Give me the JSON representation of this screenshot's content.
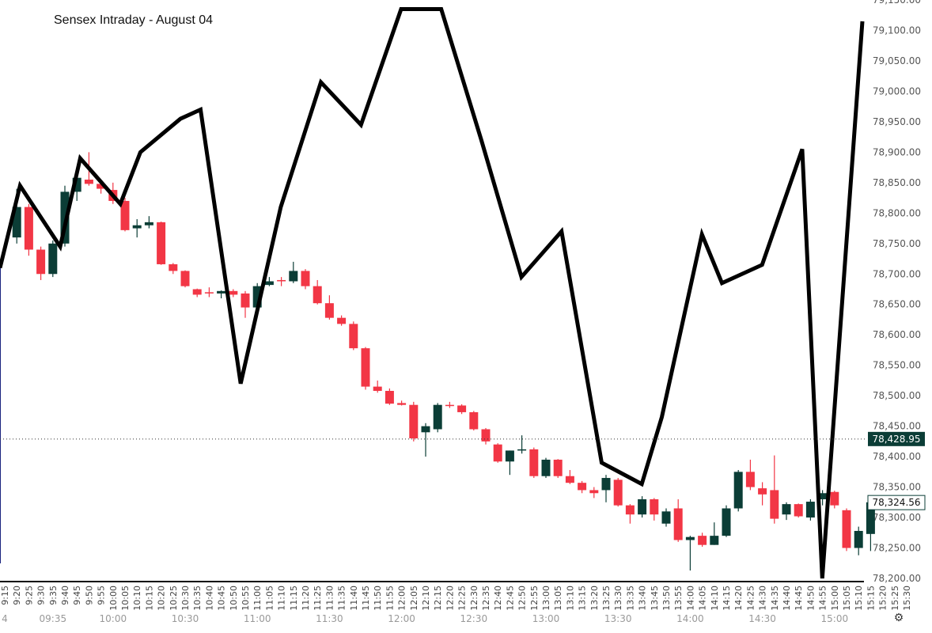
{
  "title": "Sensex Intraday - August 04",
  "chart_data": {
    "type": "candlestick",
    "title": "Sensex Intraday - August 04",
    "ylim": [
      78200,
      79150
    ],
    "y_ticks": [
      "78,200.00",
      "78,250.00",
      "78,300.00",
      "78,350.00",
      "78,400.00",
      "78,450.00",
      "78,500.00",
      "78,550.00",
      "78,600.00",
      "78,650.00",
      "78,700.00",
      "78,750.00",
      "78,800.00",
      "78,850.00",
      "78,900.00",
      "78,950.00",
      "79,000.00",
      "79,050.00",
      "79,100.00",
      "79,150.00"
    ],
    "time_labels": [
      "9:15",
      "9:20",
      "9:25",
      "9:30",
      "9:35",
      "9:40",
      "9:45",
      "9:50",
      "9:55",
      "10:00",
      "10:05",
      "10:10",
      "10:15",
      "10:20",
      "10:25",
      "10:30",
      "10:35",
      "10:40",
      "10:45",
      "10:50",
      "10:55",
      "11:00",
      "11:05",
      "11:10",
      "11:15",
      "11:20",
      "11:25",
      "11:30",
      "11:35",
      "11:40",
      "11:45",
      "11:50",
      "11:55",
      "12:00",
      "12:05",
      "12:10",
      "12:15",
      "12:20",
      "12:25",
      "12:30",
      "12:35",
      "12:40",
      "12:45",
      "12:50",
      "12:55",
      "13:00",
      "13:05",
      "13:10",
      "13:15",
      "13:20",
      "13:25",
      "13:30",
      "13:35",
      "13:40",
      "13:45",
      "13:50",
      "13:55",
      "14:00",
      "14:05",
      "14:10",
      "14:15",
      "14:20",
      "14:25",
      "14:30",
      "14:35",
      "14:40",
      "14:45",
      "14:50",
      "14:55",
      "15:00",
      "15:05",
      "15:10",
      "15:15",
      "15:20",
      "15:25",
      "15:30"
    ],
    "major_labels": [
      {
        "label": "4",
        "time": "9:15"
      },
      {
        "label": "09:35",
        "time": "9:35"
      },
      {
        "label": "10:00",
        "time": "10:00"
      },
      {
        "label": "10:30",
        "time": "10:30"
      },
      {
        "label": "11:00",
        "time": "11:00"
      },
      {
        "label": "11:30",
        "time": "11:30"
      },
      {
        "label": "12:00",
        "time": "12:00"
      },
      {
        "label": "12:30",
        "time": "12:30"
      },
      {
        "label": "13:00",
        "time": "13:00"
      },
      {
        "label": "13:30",
        "time": "13:30"
      },
      {
        "label": "14:00",
        "time": "14:00"
      },
      {
        "label": "14:30",
        "time": "14:30"
      },
      {
        "label": "15:00",
        "time": "15:00"
      }
    ],
    "candles": [
      {
        "time": "9:20",
        "o": 78760,
        "h": 78840,
        "l": 78750,
        "c": 78810
      },
      {
        "time": "9:25",
        "o": 78810,
        "h": 78815,
        "l": 78730,
        "c": 78740
      },
      {
        "time": "9:30",
        "o": 78740,
        "h": 78745,
        "l": 78690,
        "c": 78700
      },
      {
        "time": "9:35",
        "o": 78700,
        "h": 78755,
        "l": 78695,
        "c": 78750
      },
      {
        "time": "9:40",
        "o": 78750,
        "h": 78845,
        "l": 78745,
        "c": 78835
      },
      {
        "time": "9:45",
        "o": 78835,
        "h": 78862,
        "l": 78820,
        "c": 78858
      },
      {
        "time": "9:50",
        "o": 78855,
        "h": 78900,
        "l": 78845,
        "c": 78848
      },
      {
        "time": "9:55",
        "o": 78848,
        "h": 78855,
        "l": 78832,
        "c": 78840
      },
      {
        "time": "10:00",
        "o": 78838,
        "h": 78850,
        "l": 78815,
        "c": 78820
      },
      {
        "time": "10:05",
        "o": 78820,
        "h": 78825,
        "l": 78770,
        "c": 78772
      },
      {
        "time": "10:10",
        "o": 78775,
        "h": 78790,
        "l": 78760,
        "c": 78780
      },
      {
        "time": "10:15",
        "o": 78780,
        "h": 78795,
        "l": 78775,
        "c": 78785
      },
      {
        "time": "10:20",
        "o": 78785,
        "h": 78786,
        "l": 78715,
        "c": 78716
      },
      {
        "time": "10:25",
        "o": 78716,
        "h": 78718,
        "l": 78700,
        "c": 78705
      },
      {
        "time": "10:30",
        "o": 78705,
        "h": 78706,
        "l": 78678,
        "c": 78680
      },
      {
        "time": "10:35",
        "o": 78675,
        "h": 78676,
        "l": 78662,
        "c": 78666
      },
      {
        "time": "10:40",
        "o": 78670,
        "h": 78678,
        "l": 78662,
        "c": 78669
      },
      {
        "time": "10:45",
        "o": 78668,
        "h": 78673,
        "l": 78660,
        "c": 78672
      },
      {
        "time": "10:50",
        "o": 78672,
        "h": 78675,
        "l": 78662,
        "c": 78666
      },
      {
        "time": "10:55",
        "o": 78668,
        "h": 78672,
        "l": 78628,
        "c": 78645
      },
      {
        "time": "11:00",
        "o": 78645,
        "h": 78685,
        "l": 78640,
        "c": 78680
      },
      {
        "time": "11:05",
        "o": 78682,
        "h": 78695,
        "l": 78680,
        "c": 78688
      },
      {
        "time": "11:10",
        "o": 78690,
        "h": 78695,
        "l": 78680,
        "c": 78688
      },
      {
        "time": "11:15",
        "o": 78688,
        "h": 78720,
        "l": 78685,
        "c": 78705
      },
      {
        "time": "11:20",
        "o": 78705,
        "h": 78708,
        "l": 78675,
        "c": 78680
      },
      {
        "time": "11:25",
        "o": 78680,
        "h": 78690,
        "l": 78650,
        "c": 78652
      },
      {
        "time": "11:30",
        "o": 78652,
        "h": 78665,
        "l": 78625,
        "c": 78628
      },
      {
        "time": "11:35",
        "o": 78628,
        "h": 78632,
        "l": 78615,
        "c": 78618
      },
      {
        "time": "11:40",
        "o": 78618,
        "h": 78622,
        "l": 78575,
        "c": 78578
      },
      {
        "time": "11:45",
        "o": 78578,
        "h": 78580,
        "l": 78510,
        "c": 78515
      },
      {
        "time": "11:50",
        "o": 78515,
        "h": 78525,
        "l": 78505,
        "c": 78508
      },
      {
        "time": "11:55",
        "o": 78508,
        "h": 78512,
        "l": 78485,
        "c": 78487
      },
      {
        "time": "12:00",
        "o": 78488,
        "h": 78492,
        "l": 78484,
        "c": 78485
      },
      {
        "time": "12:05",
        "o": 78485,
        "h": 78490,
        "l": 78425,
        "c": 78430
      },
      {
        "time": "12:10",
        "o": 78440,
        "h": 78455,
        "l": 78400,
        "c": 78450
      },
      {
        "time": "12:15",
        "o": 78445,
        "h": 78488,
        "l": 78440,
        "c": 78485
      },
      {
        "time": "12:20",
        "o": 78485,
        "h": 78490,
        "l": 78480,
        "c": 78484
      },
      {
        "time": "12:25",
        "o": 78484,
        "h": 78486,
        "l": 78470,
        "c": 78473
      },
      {
        "time": "12:30",
        "o": 78473,
        "h": 78475,
        "l": 78443,
        "c": 78445
      },
      {
        "time": "12:35",
        "o": 78445,
        "h": 78447,
        "l": 78420,
        "c": 78425
      },
      {
        "time": "12:40",
        "o": 78420,
        "h": 78422,
        "l": 78390,
        "c": 78392
      },
      {
        "time": "12:45",
        "o": 78392,
        "h": 78410,
        "l": 78370,
        "c": 78410
      },
      {
        "time": "12:50",
        "o": 78410,
        "h": 78435,
        "l": 78405,
        "c": 78412
      },
      {
        "time": "12:55",
        "o": 78412,
        "h": 78415,
        "l": 78365,
        "c": 78368
      },
      {
        "time": "13:00",
        "o": 78368,
        "h": 78398,
        "l": 78365,
        "c": 78395
      },
      {
        "time": "13:05",
        "o": 78395,
        "h": 78396,
        "l": 78365,
        "c": 78368
      },
      {
        "time": "13:10",
        "o": 78368,
        "h": 78378,
        "l": 78355,
        "c": 78357
      },
      {
        "time": "13:15",
        "o": 78357,
        "h": 78360,
        "l": 78340,
        "c": 78345
      },
      {
        "time": "13:20",
        "o": 78345,
        "h": 78350,
        "l": 78332,
        "c": 78340
      },
      {
        "time": "13:25",
        "o": 78345,
        "h": 78370,
        "l": 78325,
        "c": 78365
      },
      {
        "time": "13:30",
        "o": 78362,
        "h": 78365,
        "l": 78318,
        "c": 78320
      },
      {
        "time": "13:35",
        "o": 78320,
        "h": 78322,
        "l": 78290,
        "c": 78305
      },
      {
        "time": "13:40",
        "o": 78305,
        "h": 78335,
        "l": 78300,
        "c": 78330
      },
      {
        "time": "13:45",
        "o": 78330,
        "h": 78332,
        "l": 78295,
        "c": 78305
      },
      {
        "time": "13:50",
        "o": 78290,
        "h": 78315,
        "l": 78285,
        "c": 78310
      },
      {
        "time": "13:55",
        "o": 78315,
        "h": 78330,
        "l": 78260,
        "c": 78263
      },
      {
        "time": "14:00",
        "o": 78263,
        "h": 78270,
        "l": 78213,
        "c": 78268
      },
      {
        "time": "14:05",
        "o": 78270,
        "h": 78275,
        "l": 78252,
        "c": 78255
      },
      {
        "time": "14:10",
        "o": 78255,
        "h": 78292,
        "l": 78255,
        "c": 78270
      },
      {
        "time": "14:15",
        "o": 78270,
        "h": 78320,
        "l": 78268,
        "c": 78315
      },
      {
        "time": "14:20",
        "o": 78315,
        "h": 78378,
        "l": 78310,
        "c": 78375
      },
      {
        "time": "14:25",
        "o": 78375,
        "h": 78395,
        "l": 78345,
        "c": 78350
      },
      {
        "time": "14:30",
        "o": 78348,
        "h": 78358,
        "l": 78320,
        "c": 78338
      },
      {
        "time": "14:35",
        "o": 78345,
        "h": 78402,
        "l": 78290,
        "c": 78298
      },
      {
        "time": "14:40",
        "o": 78305,
        "h": 78325,
        "l": 78296,
        "c": 78322
      },
      {
        "time": "14:45",
        "o": 78322,
        "h": 78323,
        "l": 78300,
        "c": 78302
      },
      {
        "time": "14:50",
        "o": 78300,
        "h": 78330,
        "l": 78295,
        "c": 78326
      },
      {
        "time": "14:55",
        "o": 78330,
        "h": 78345,
        "l": 78320,
        "c": 78340
      },
      {
        "time": "15:00",
        "o": 78342,
        "h": 78344,
        "l": 78315,
        "c": 78320
      },
      {
        "time": "15:05",
        "o": 78312,
        "h": 78315,
        "l": 78245,
        "c": 78250
      },
      {
        "time": "15:10",
        "o": 78250,
        "h": 78285,
        "l": 78238,
        "c": 78278
      },
      {
        "time": "15:15",
        "o": 78273,
        "h": 78330,
        "l": 78245,
        "c": 78325
      }
    ],
    "series": [
      {
        "x": [
          "9:15",
          "9:20",
          "9:30",
          "9:35",
          "9:45",
          "9:50",
          "10:00",
          "10:05",
          "10:15",
          "10:25",
          "10:35",
          "10:45",
          "10:55",
          "11:05",
          "11:15",
          "11:25",
          "11:35",
          "11:45",
          "11:55",
          "12:00",
          "12:10",
          "12:15",
          "12:25",
          "12:35",
          "12:40",
          "12:50",
          "12:55",
          "13:05",
          "13:10",
          "13:20",
          "13:25",
          "13:35",
          "13:40",
          "13:50",
          "14:00",
          "14:10",
          "14:20",
          "14:25",
          "14:35",
          "14:40",
          "14:50",
          "15:00",
          "15:05",
          "15:15"
        ],
        "y": [
          78710,
          78845,
          78745,
          78890,
          78815,
          78900,
          78955,
          78970,
          78520,
          78810,
          79015,
          78945,
          79135,
          79135,
          78920,
          78695,
          78770,
          78390,
          78355,
          78465,
          78765,
          78685,
          78715,
          78905,
          78200,
          79115,
          null,
          null,
          null,
          null,
          null,
          null,
          null,
          null,
          null,
          null,
          null,
          null,
          null,
          null,
          null,
          null,
          null,
          null
        ]
      }
    ],
    "current_price": "78,428.95",
    "last_price": "78,324.56",
    "colors": {
      "up": "#0b3d36",
      "down": "#f23645",
      "line": "#000000",
      "axis_text": "#555555"
    }
  }
}
